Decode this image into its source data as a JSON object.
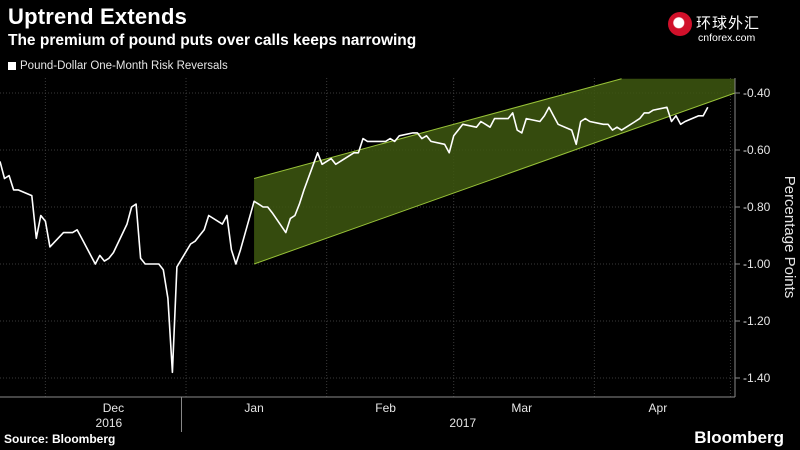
{
  "header": {
    "title": "Uptrend Extends",
    "subtitle": "The premium of pound puts over calls keeps narrowing"
  },
  "watermark": {
    "chinese": "环球外汇",
    "site": "cnforex.com"
  },
  "footer": {
    "source": "Source: Bloomberg",
    "brand": "Bloomberg"
  },
  "colors": {
    "background": "#000000",
    "line": "#ffffff",
    "channel_fill": "#3e5810",
    "channel_edge": "#98c238",
    "grid": "#3a3a3a"
  },
  "chart_data": {
    "type": "line",
    "title": "Uptrend Extends",
    "subtitle": "The premium of pound puts over calls keeps narrowing",
    "ylabel": "Percentage Points",
    "ylim": [
      -1.45,
      -0.35
    ],
    "yticks": [
      -0.4,
      -0.6,
      -0.8,
      -1.0,
      -1.2,
      -1.4
    ],
    "ytick_labels": [
      "-0.40",
      "-0.60",
      "-0.80",
      "-1.00",
      "-1.20",
      "-1.40"
    ],
    "grid": true,
    "legend_position": "top-left",
    "x_axis": {
      "start": "2016-11-21",
      "end": "2017-05-02",
      "month_labels": [
        {
          "label": "Dec",
          "date": "2016-12-16"
        },
        {
          "label": "Jan",
          "date": "2017-01-16"
        },
        {
          "label": "Feb",
          "date": "2017-02-14"
        },
        {
          "label": "Mar",
          "date": "2017-03-16"
        },
        {
          "label": "Apr",
          "date": "2017-04-15"
        }
      ],
      "year_labels": [
        {
          "label": "2016",
          "date": "2016-12-15"
        },
        {
          "label": "2017",
          "date": "2017-03-03"
        }
      ],
      "year_separator": "2016-12-31",
      "gridlines": [
        "2016-12-01",
        "2017-01-01",
        "2017-02-01",
        "2017-03-01",
        "2017-04-01",
        "2017-05-01"
      ]
    },
    "series": [
      {
        "name": "Pound-Dollar One-Month Risk Reversals",
        "x": [
          "2016-11-21",
          "2016-11-22",
          "2016-11-23",
          "2016-11-24",
          "2016-11-25",
          "2016-11-28",
          "2016-11-29",
          "2016-11-30",
          "2016-12-01",
          "2016-12-02",
          "2016-12-05",
          "2016-12-06",
          "2016-12-07",
          "2016-12-08",
          "2016-12-09",
          "2016-12-12",
          "2016-12-13",
          "2016-12-14",
          "2016-12-15",
          "2016-12-16",
          "2016-12-19",
          "2016-12-20",
          "2016-12-21",
          "2016-12-22",
          "2016-12-23",
          "2016-12-26",
          "2016-12-27",
          "2016-12-28",
          "2016-12-29",
          "2016-12-30",
          "2017-01-02",
          "2017-01-03",
          "2017-01-04",
          "2017-01-05",
          "2017-01-06",
          "2017-01-09",
          "2017-01-10",
          "2017-01-11",
          "2017-01-12",
          "2017-01-13",
          "2017-01-16",
          "2017-01-17",
          "2017-01-18",
          "2017-01-19",
          "2017-01-20",
          "2017-01-23",
          "2017-01-24",
          "2017-01-25",
          "2017-01-26",
          "2017-01-27",
          "2017-01-30",
          "2017-01-31",
          "2017-02-01",
          "2017-02-02",
          "2017-02-03",
          "2017-02-06",
          "2017-02-07",
          "2017-02-08",
          "2017-02-09",
          "2017-02-10",
          "2017-02-13",
          "2017-02-14",
          "2017-02-15",
          "2017-02-16",
          "2017-02-17",
          "2017-02-20",
          "2017-02-21",
          "2017-02-22",
          "2017-02-23",
          "2017-02-24",
          "2017-02-27",
          "2017-02-28",
          "2017-03-01",
          "2017-03-02",
          "2017-03-03",
          "2017-03-06",
          "2017-03-07",
          "2017-03-08",
          "2017-03-09",
          "2017-03-10",
          "2017-03-13",
          "2017-03-14",
          "2017-03-15",
          "2017-03-16",
          "2017-03-17",
          "2017-03-20",
          "2017-03-21",
          "2017-03-22",
          "2017-03-23",
          "2017-03-24",
          "2017-03-27",
          "2017-03-28",
          "2017-03-29",
          "2017-03-30",
          "2017-03-31",
          "2017-04-03",
          "2017-04-04",
          "2017-04-05",
          "2017-04-06",
          "2017-04-07",
          "2017-04-10",
          "2017-04-11",
          "2017-04-12",
          "2017-04-13",
          "2017-04-14",
          "2017-04-17",
          "2017-04-18",
          "2017-04-19",
          "2017-04-20",
          "2017-04-21",
          "2017-04-24",
          "2017-04-25",
          "2017-04-26"
        ],
        "y": [
          -0.64,
          -0.7,
          -0.69,
          -0.74,
          -0.74,
          -0.76,
          -0.91,
          -0.83,
          -0.85,
          -0.94,
          -0.89,
          -0.89,
          -0.89,
          -0.88,
          -0.91,
          -1.0,
          -0.97,
          -0.99,
          -0.98,
          -0.96,
          -0.86,
          -0.8,
          -0.79,
          -0.98,
          -1.0,
          -1.0,
          -1.02,
          -1.12,
          -1.38,
          -1.01,
          -0.93,
          -0.92,
          -0.9,
          -0.88,
          -0.83,
          -0.86,
          -0.83,
          -0.95,
          -1.0,
          -0.95,
          -0.78,
          -0.79,
          -0.8,
          -0.8,
          -0.82,
          -0.89,
          -0.84,
          -0.83,
          -0.79,
          -0.74,
          -0.61,
          -0.65,
          -0.64,
          -0.63,
          -0.65,
          -0.62,
          -0.61,
          -0.61,
          -0.56,
          -0.57,
          -0.57,
          -0.57,
          -0.56,
          -0.57,
          -0.55,
          -0.54,
          -0.54,
          -0.56,
          -0.55,
          -0.57,
          -0.58,
          -0.61,
          -0.55,
          -0.53,
          -0.51,
          -0.52,
          -0.5,
          -0.51,
          -0.52,
          -0.49,
          -0.49,
          -0.47,
          -0.53,
          -0.54,
          -0.49,
          -0.5,
          -0.48,
          -0.45,
          -0.48,
          -0.51,
          -0.53,
          -0.58,
          -0.5,
          -0.49,
          -0.5,
          -0.51,
          -0.51,
          -0.53,
          -0.52,
          -0.53,
          -0.5,
          -0.49,
          -0.47,
          -0.47,
          -0.46,
          -0.45,
          -0.5,
          -0.48,
          -0.51,
          -0.5,
          -0.48,
          -0.48,
          -0.45
        ]
      }
    ],
    "annotations": [
      {
        "type": "channel",
        "lower_start": {
          "x": "2017-01-16",
          "y": -1.0
        },
        "lower_end": {
          "x": "2017-05-02",
          "y": -0.4
        },
        "upper_start": {
          "x": "2017-01-16",
          "y": -0.7
        },
        "upper_end": {
          "x": "2017-04-07",
          "y": -0.35
        },
        "top_cap": -0.35
      }
    ]
  }
}
